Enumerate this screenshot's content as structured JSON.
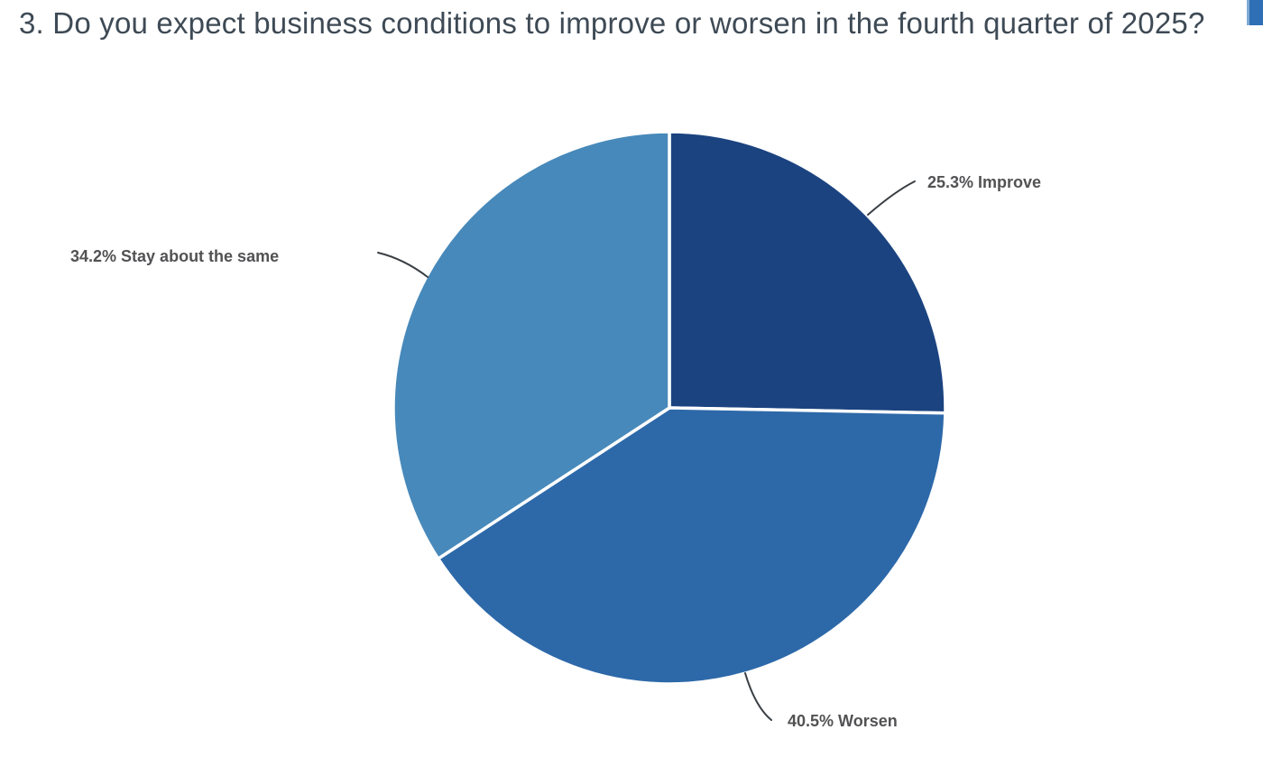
{
  "page": {
    "background": "#ffffff"
  },
  "chart_data": {
    "type": "pie",
    "title": "3. Do you expect business conditions to improve or worsen in the fourth quarter of 2025?",
    "title_color": "#3e4a55",
    "legend": "none",
    "start_angle_deg": 0,
    "direction": "clockwise",
    "label_color": "#525254",
    "connector_color": "#3a3f44",
    "slice_border_color": "#ffffff",
    "slices": [
      {
        "name": "Improve",
        "value": 25.3,
        "label": "25.3% Improve",
        "color": "#1b4380"
      },
      {
        "name": "Worsen",
        "value": 40.5,
        "label": "40.5% Worsen",
        "color": "#2d69a9"
      },
      {
        "name": "Stay about the same",
        "value": 34.2,
        "label": "34.2% Stay about the same",
        "color": "#4789ba"
      }
    ]
  }
}
